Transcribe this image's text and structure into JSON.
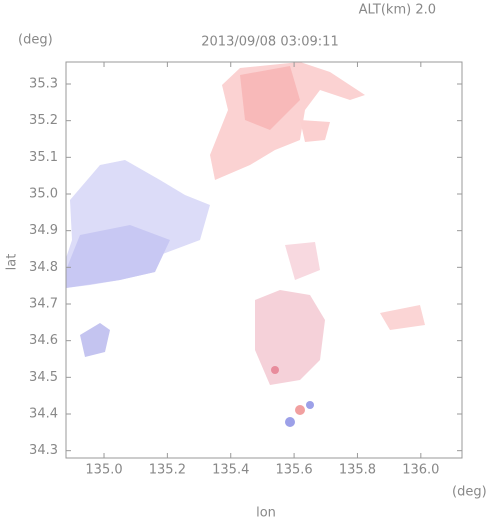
{
  "chart_data": {
    "type": "map",
    "title": "2013/09/08 03:09:11",
    "altitude_label": "ALT(km) 2.0",
    "y_unit": "(deg)",
    "x_unit": "(deg)",
    "y_label": "lat",
    "x_label": "lon",
    "xlim": [
      134.88,
      136.13
    ],
    "xticks": [
      {
        "value": 135,
        "label": "135.0"
      },
      135.2,
      135.4,
      135.6,
      135.8,
      {
        "value": 136,
        "label": "136.0"
      }
    ],
    "ylim": [
      34.28,
      35.36
    ],
    "yticks": [
      34.3,
      34.4,
      34.5,
      34.6,
      34.7,
      34.8,
      34.9,
      {
        "value": 35,
        "label": "35.0"
      },
      35.1,
      35.2,
      35.3
    ]
  }
}
